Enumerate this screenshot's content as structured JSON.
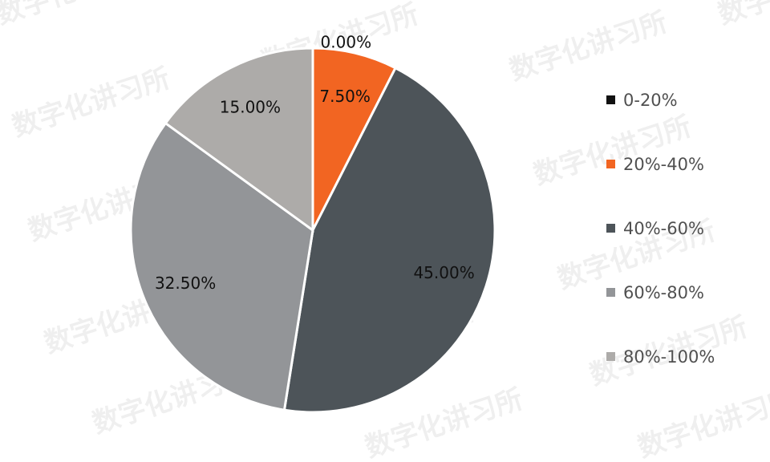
{
  "chart_data": {
    "type": "pie",
    "categories": [
      "0-20%",
      "20%-40%",
      "40%-60%",
      "60%-80%",
      "80%-100%"
    ],
    "values": [
      0.0,
      7.5,
      45.0,
      32.5,
      15.0
    ],
    "data_labels": [
      "0.00%",
      "7.50%",
      "45.00%",
      "32.50%",
      "15.00%"
    ],
    "colors": [
      "#111111",
      "#F26522",
      "#4D5459",
      "#939598",
      "#ADABA9"
    ],
    "start_angle": "top, clockwise",
    "legend_position": "right"
  },
  "watermark": "数字化讲习所"
}
